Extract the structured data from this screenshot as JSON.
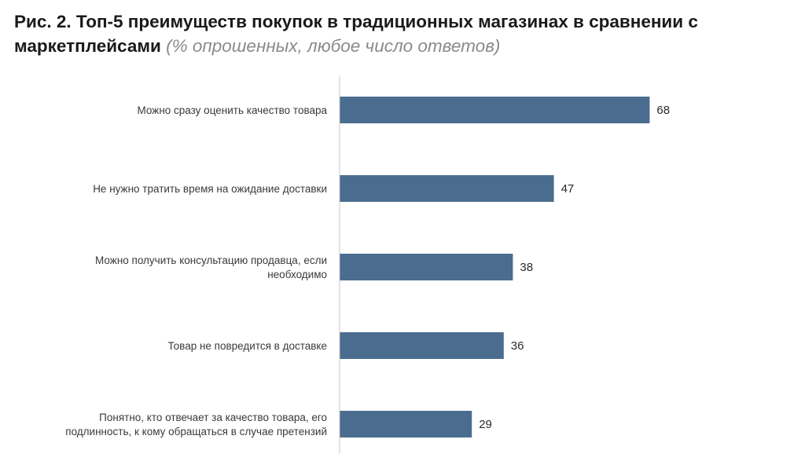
{
  "title": {
    "main": "Рис. 2. Топ-5 преимуществ покупок в традиционных магазинах в сравнении с маркетплейсами",
    "sub": "(% опрошенных, любое число ответов)"
  },
  "colors": {
    "bar": "#4a6d8f",
    "axis": "#c8c8c8"
  },
  "chart_data": {
    "type": "bar",
    "orientation": "horizontal",
    "categories": [
      [
        "Можно сразу оценить качество товара"
      ],
      [
        "Не нужно тратить время на ожидание доставки"
      ],
      [
        "Можно получить консультацию продавца, если",
        "необходимо"
      ],
      [
        "Товар не повредится в доставке"
      ],
      [
        "Понятно, кто отвечает за качество товара, его",
        "подлинность, к кому обращаться в случае претензий"
      ]
    ],
    "values": [
      68,
      47,
      38,
      36,
      29
    ],
    "xlim": [
      0,
      100
    ],
    "grid": false
  }
}
